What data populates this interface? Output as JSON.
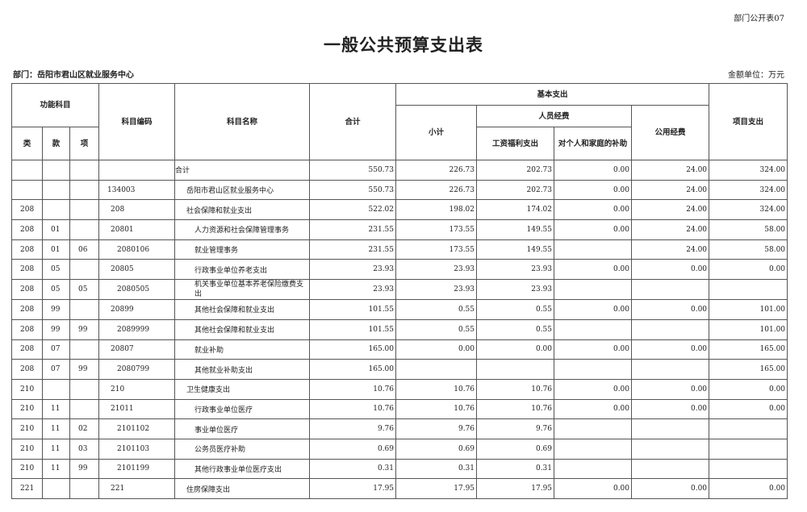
{
  "form_no": "部门公开表07",
  "title": "一般公共预算支出表",
  "department": "部门：岳阳市君山区就业服务中心",
  "unit": "金额单位：万元",
  "headers": {
    "func": "功能科目",
    "lei": "类",
    "kuan": "款",
    "xiang": "项",
    "code": "科目编码",
    "name": "科目名称",
    "total": "合计",
    "basic": "基本支出",
    "subtotal": "小计",
    "personnel": "人员经费",
    "salary": "工资福利支出",
    "subsidy": "对个人和家庭的补助",
    "public": "公用经费",
    "project": "项目支出"
  },
  "rows": [
    {
      "lei": "",
      "kuan": "",
      "xiang": "",
      "code": "",
      "name": "合计",
      "total": "550.73",
      "subtotal": "226.73",
      "salary": "202.73",
      "subsidy": "0.00",
      "public": "24.00",
      "project": "324.00",
      "lv": 0
    },
    {
      "lei": "",
      "kuan": "",
      "xiang": "",
      "code": "134003",
      "name": "岳阳市君山区就业服务中心",
      "total": "550.73",
      "subtotal": "226.73",
      "salary": "202.73",
      "subsidy": "0.00",
      "public": "24.00",
      "project": "324.00",
      "lv": 1
    },
    {
      "lei": "208",
      "kuan": "",
      "xiang": "",
      "code": "208",
      "name": "社会保障和就业支出",
      "total": "522.02",
      "subtotal": "198.02",
      "salary": "174.02",
      "subsidy": "0.00",
      "public": "24.00",
      "project": "324.00",
      "lv": 2
    },
    {
      "lei": "208",
      "kuan": "01",
      "xiang": "",
      "code": "20801",
      "name": "人力资源和社会保障管理事务",
      "total": "231.55",
      "subtotal": "173.55",
      "salary": "149.55",
      "subsidy": "0.00",
      "public": "24.00",
      "project": "58.00",
      "lv": 3
    },
    {
      "lei": "208",
      "kuan": "01",
      "xiang": "06",
      "code": "2080106",
      "name": "就业管理事务",
      "total": "231.55",
      "subtotal": "173.55",
      "salary": "149.55",
      "subsidy": "",
      "public": "24.00",
      "project": "58.00",
      "lv": 4
    },
    {
      "lei": "208",
      "kuan": "05",
      "xiang": "",
      "code": "20805",
      "name": "行政事业单位养老支出",
      "total": "23.93",
      "subtotal": "23.93",
      "salary": "23.93",
      "subsidy": "0.00",
      "public": "0.00",
      "project": "0.00",
      "lv": 3
    },
    {
      "lei": "208",
      "kuan": "05",
      "xiang": "05",
      "code": "2080505",
      "name": "机关事业单位基本养老保险缴费支出",
      "total": "23.93",
      "subtotal": "23.93",
      "salary": "23.93",
      "subsidy": "",
      "public": "",
      "project": "",
      "lv": 4
    },
    {
      "lei": "208",
      "kuan": "99",
      "xiang": "",
      "code": "20899",
      "name": "其他社会保障和就业支出",
      "total": "101.55",
      "subtotal": "0.55",
      "salary": "0.55",
      "subsidy": "0.00",
      "public": "0.00",
      "project": "101.00",
      "lv": 3
    },
    {
      "lei": "208",
      "kuan": "99",
      "xiang": "99",
      "code": "2089999",
      "name": "其他社会保障和就业支出",
      "total": "101.55",
      "subtotal": "0.55",
      "salary": "0.55",
      "subsidy": "",
      "public": "",
      "project": "101.00",
      "lv": 4
    },
    {
      "lei": "208",
      "kuan": "07",
      "xiang": "",
      "code": "20807",
      "name": "就业补助",
      "total": "165.00",
      "subtotal": "0.00",
      "salary": "0.00",
      "subsidy": "0.00",
      "public": "0.00",
      "project": "165.00",
      "lv": 3
    },
    {
      "lei": "208",
      "kuan": "07",
      "xiang": "99",
      "code": "2080799",
      "name": "其他就业补助支出",
      "total": "165.00",
      "subtotal": "",
      "salary": "",
      "subsidy": "",
      "public": "",
      "project": "165.00",
      "lv": 4
    },
    {
      "lei": "210",
      "kuan": "",
      "xiang": "",
      "code": "210",
      "name": "卫生健康支出",
      "total": "10.76",
      "subtotal": "10.76",
      "salary": "10.76",
      "subsidy": "0.00",
      "public": "0.00",
      "project": "0.00",
      "lv": 2
    },
    {
      "lei": "210",
      "kuan": "11",
      "xiang": "",
      "code": "21011",
      "name": "行政事业单位医疗",
      "total": "10.76",
      "subtotal": "10.76",
      "salary": "10.76",
      "subsidy": "0.00",
      "public": "0.00",
      "project": "0.00",
      "lv": 3
    },
    {
      "lei": "210",
      "kuan": "11",
      "xiang": "02",
      "code": "2101102",
      "name": "事业单位医疗",
      "total": "9.76",
      "subtotal": "9.76",
      "salary": "9.76",
      "subsidy": "",
      "public": "",
      "project": "",
      "lv": 4
    },
    {
      "lei": "210",
      "kuan": "11",
      "xiang": "03",
      "code": "2101103",
      "name": "公务员医疗补助",
      "total": "0.69",
      "subtotal": "0.69",
      "salary": "0.69",
      "subsidy": "",
      "public": "",
      "project": "",
      "lv": 4
    },
    {
      "lei": "210",
      "kuan": "11",
      "xiang": "99",
      "code": "2101199",
      "name": "其他行政事业单位医疗支出",
      "total": "0.31",
      "subtotal": "0.31",
      "salary": "0.31",
      "subsidy": "",
      "public": "",
      "project": "",
      "lv": 4
    },
    {
      "lei": "221",
      "kuan": "",
      "xiang": "",
      "code": "221",
      "name": "住房保障支出",
      "total": "17.95",
      "subtotal": "17.95",
      "salary": "17.95",
      "subsidy": "0.00",
      "public": "0.00",
      "project": "0.00",
      "lv": 2
    }
  ]
}
